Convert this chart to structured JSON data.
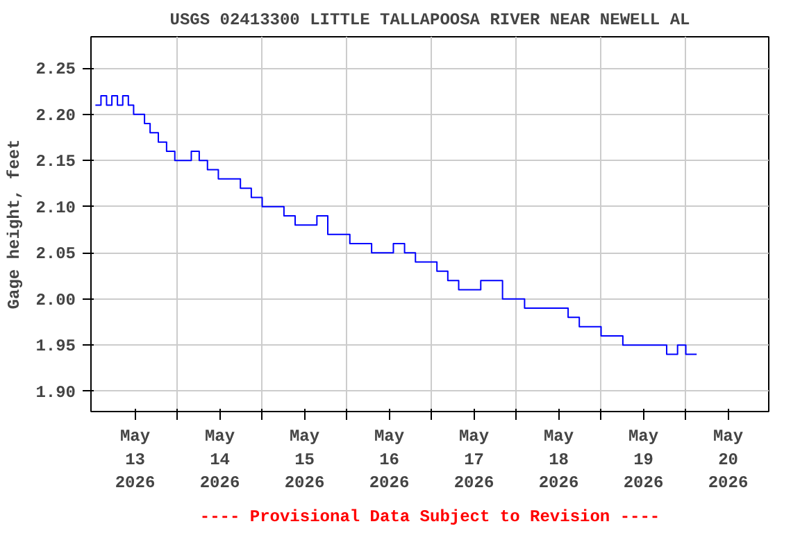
{
  "chart_data": {
    "type": "step",
    "title": "USGS 02413300 LITTLE TALLAPOOSA RIVER NEAR NEWELL AL",
    "ylabel": "Gage height, feet",
    "annotations": [
      "---- Provisional Data Subject to Revision ----"
    ],
    "xlim": [
      "2026-05-12T11:30",
      "2026-05-20T11:30"
    ],
    "xticks": [
      {
        "value": "2026-05-13",
        "label": "May\n13\n2026"
      },
      {
        "value": "2026-05-14",
        "label": "May\n14\n2026"
      },
      {
        "value": "2026-05-15",
        "label": "May\n15\n2026"
      },
      {
        "value": "2026-05-16",
        "label": "May\n16\n2026"
      },
      {
        "value": "2026-05-17",
        "label": "May\n17\n2026"
      },
      {
        "value": "2026-05-18",
        "label": "May\n18\n2026"
      },
      {
        "value": "2026-05-19",
        "label": "May\n19\n2026"
      },
      {
        "value": "2026-05-20",
        "label": "May\n20\n2026"
      },
      {
        "value": "2026-05-13T12:00",
        "label": null
      },
      {
        "value": "2026-05-14T12:00",
        "label": null
      },
      {
        "value": "2026-05-15T12:00",
        "label": null
      },
      {
        "value": "2026-05-16T12:00",
        "label": null
      },
      {
        "value": "2026-05-17T12:00",
        "label": null
      },
      {
        "value": "2026-05-18T12:00",
        "label": null
      },
      {
        "value": "2026-05-19T12:00",
        "label": null
      }
    ],
    "ylim": [
      1.878,
      2.284
    ],
    "yticks": [
      {
        "value": 1.9,
        "label": "1.90"
      },
      {
        "value": 1.95,
        "label": "1.95"
      },
      {
        "value": 2.0,
        "label": "2.00"
      },
      {
        "value": 2.05,
        "label": "2.05"
      },
      {
        "value": 2.1,
        "label": "2.10"
      },
      {
        "value": 2.15,
        "label": "2.15"
      },
      {
        "value": 2.2,
        "label": "2.20"
      },
      {
        "value": 2.25,
        "label": "2.25"
      }
    ],
    "grid": true,
    "marker": "none",
    "line_style": "solid",
    "series": [
      {
        "color": "#0000ff",
        "x": [
          "2026-05-12T12:45",
          "2026-05-12T14:20",
          "2026-05-12T15:55",
          "2026-05-12T17:25",
          "2026-05-12T19:00",
          "2026-05-12T20:30",
          "2026-05-12T22:05",
          "2026-05-12T23:35",
          "2026-05-13T01:10",
          "2026-05-13T02:40",
          "2026-05-13T04:15",
          "2026-05-13T06:35",
          "2026-05-13T08:55",
          "2026-05-13T11:15",
          "2026-05-13T13:30",
          "2026-05-13T15:55",
          "2026-05-13T18:10",
          "2026-05-13T20:30",
          "2026-05-13T23:35",
          "2026-05-14T02:40",
          "2026-05-14T05:50",
          "2026-05-14T08:55",
          "2026-05-14T12:00",
          "2026-05-14T15:05",
          "2026-05-14T18:10",
          "2026-05-14T21:20",
          "2026-05-15T00:25",
          "2026-05-15T03:30",
          "2026-05-15T06:35",
          "2026-05-15T09:40",
          "2026-05-15T12:50",
          "2026-05-15T15:55",
          "2026-05-15T19:00",
          "2026-05-15T22:05",
          "2026-05-16T01:10",
          "2026-05-16T04:20",
          "2026-05-16T07:25",
          "2026-05-16T10:30",
          "2026-05-16T13:30",
          "2026-05-16T16:35",
          "2026-05-16T19:40",
          "2026-05-16T22:50",
          "2026-05-17T01:55",
          "2026-05-17T05:00",
          "2026-05-17T08:05",
          "2026-05-17T11:10",
          "2026-05-17T14:20",
          "2026-05-17T17:25",
          "2026-05-17T20:30",
          "2026-05-17T23:35",
          "2026-05-18T02:40",
          "2026-05-18T05:50",
          "2026-05-18T08:55",
          "2026-05-18T12:00",
          "2026-05-18T15:05",
          "2026-05-18T18:10",
          "2026-05-18T21:20",
          "2026-05-19T00:25",
          "2026-05-19T03:30",
          "2026-05-19T06:35",
          "2026-05-19T09:40",
          "2026-05-19T12:00",
          "2026-05-19T15:05"
        ],
        "values": [
          2.21,
          2.22,
          2.21,
          2.22,
          2.21,
          2.22,
          2.21,
          2.2,
          2.2,
          2.19,
          2.18,
          2.17,
          2.16,
          2.15,
          2.15,
          2.16,
          2.15,
          2.14,
          2.13,
          2.13,
          2.12,
          2.11,
          2.1,
          2.1,
          2.09,
          2.08,
          2.08,
          2.09,
          2.07,
          2.07,
          2.06,
          2.06,
          2.05,
          2.05,
          2.06,
          2.05,
          2.04,
          2.04,
          2.03,
          2.02,
          2.01,
          2.01,
          2.02,
          2.02,
          2.0,
          2.0,
          1.99,
          1.99,
          1.99,
          1.99,
          1.98,
          1.97,
          1.97,
          1.96,
          1.96,
          1.95,
          1.95,
          1.95,
          1.95,
          1.94,
          1.95,
          1.94,
          1.94
        ]
      }
    ]
  }
}
